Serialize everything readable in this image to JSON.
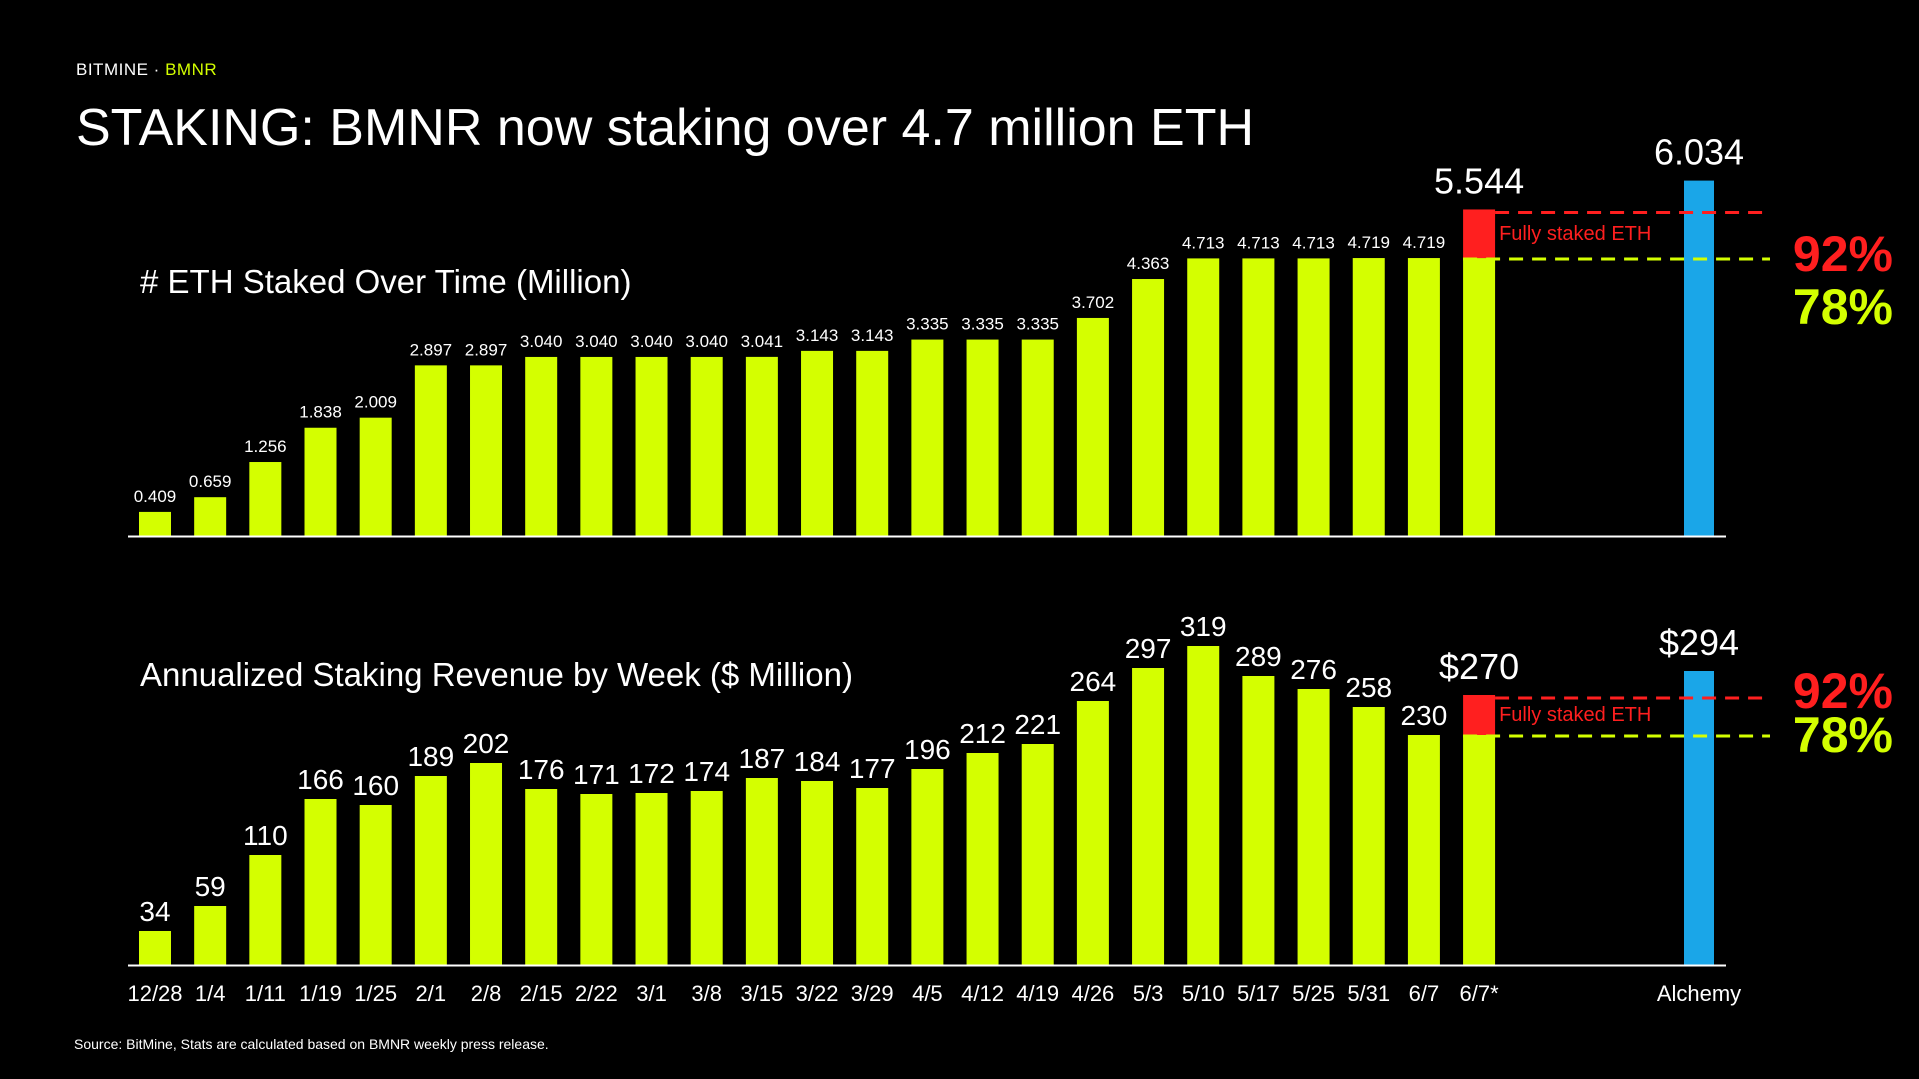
{
  "header": {
    "brand": "BITMINE",
    "separator": " · ",
    "ticker": "BMNR",
    "title": "STAKING: BMNR now staking over 4.7 million ETH"
  },
  "footer": {
    "source": "Source: BitMine, Stats are calculated based on BMNR weekly press release."
  },
  "colors": {
    "bar": "#d4ff00",
    "red": "#ff1f1f",
    "blue": "#1aa6e8",
    "axis": "#ffffff",
    "text": "#ffffff"
  },
  "reference_lines": {
    "red_label": "92%",
    "green_label": "78%",
    "fully_staked_label": "Fully staked ETH"
  },
  "chart_data": [
    {
      "type": "bar",
      "title": "# ETH Staked Over Time (Million)",
      "categories": [
        "12/28",
        "1/4",
        "1/11",
        "1/19",
        "1/25",
        "2/1",
        "2/8",
        "2/15",
        "2/22",
        "3/1",
        "3/8",
        "3/15",
        "3/22",
        "3/29",
        "4/5",
        "4/12",
        "4/19",
        "4/26",
        "5/3",
        "5/10",
        "5/17",
        "5/25",
        "5/31",
        "6/7",
        "6/7*"
      ],
      "values": [
        0.409,
        0.659,
        1.256,
        1.838,
        2.009,
        2.897,
        2.897,
        3.04,
        3.04,
        3.04,
        3.04,
        3.041,
        3.143,
        3.143,
        3.335,
        3.335,
        3.335,
        3.702,
        4.363,
        4.713,
        4.713,
        4.713,
        4.719,
        4.719,
        4.719
      ],
      "value_labels": [
        "0.409",
        "0.659",
        "1.256",
        "1.838",
        "2.009",
        "2.897",
        "2.897",
        "3.040",
        "3.040",
        "3.040",
        "3.040",
        "3.041",
        "3.143",
        "3.143",
        "3.335",
        "3.335",
        "3.335",
        "3.702",
        "4.363",
        "4.713",
        "4.713",
        "4.713",
        "4.719",
        "4.719",
        ""
      ],
      "fully_staked_value": 5.544,
      "fully_staked_label": "5.544",
      "alchemy_label": "Alchemy",
      "alchemy_value": 6.034,
      "alchemy_value_label": "6.034"
    },
    {
      "type": "bar",
      "title": "Annualized Staking Revenue by Week ($ Million)",
      "categories": [
        "12/28",
        "1/4",
        "1/11",
        "1/19",
        "1/25",
        "2/1",
        "2/8",
        "2/15",
        "2/22",
        "3/1",
        "3/8",
        "3/15",
        "3/22",
        "3/29",
        "4/5",
        "4/12",
        "4/19",
        "4/26",
        "5/3",
        "5/10",
        "5/17",
        "5/25",
        "5/31",
        "6/7",
        "6/7*"
      ],
      "values": [
        34,
        59,
        110,
        166,
        160,
        189,
        202,
        176,
        171,
        172,
        174,
        187,
        184,
        177,
        196,
        212,
        221,
        264,
        297,
        319,
        289,
        276,
        258,
        230,
        230
      ],
      "value_labels": [
        "34",
        "59",
        "110",
        "166",
        "160",
        "189",
        "202",
        "176",
        "171",
        "172",
        "174",
        "187",
        "184",
        "177",
        "196",
        "212",
        "221",
        "264",
        "297",
        "319",
        "289",
        "276",
        "258",
        "230",
        ""
      ],
      "fully_staked_value": 270,
      "fully_staked_label": "$270",
      "alchemy_label": "Alchemy",
      "alchemy_value": 294,
      "alchemy_value_label": "$294"
    }
  ]
}
